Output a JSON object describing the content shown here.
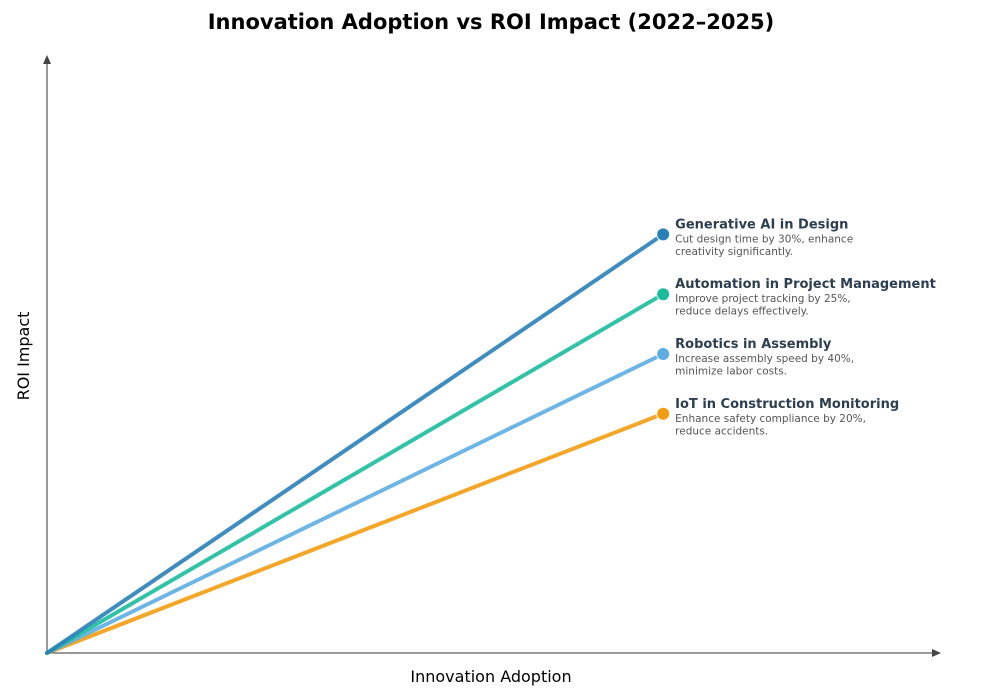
{
  "chart_data": {
    "type": "line",
    "title": "Innovation Adoption vs ROI Impact (2022–2025)",
    "xlabel": "Innovation Adoption",
    "ylabel": "ROI Impact",
    "xlim": [
      0,
      1
    ],
    "ylim": [
      0,
      1
    ],
    "grid": false,
    "axis_ticks": false,
    "series": [
      {
        "name": "Generative AI in Design",
        "description_lines": [
          "Cut design time by 30%, enhance",
          "creativity significantly."
        ],
        "color": "#2980b9",
        "x": [
          0,
          0.69
        ],
        "y": [
          0,
          0.7
        ]
      },
      {
        "name": "Automation in Project Management",
        "description_lines": [
          "Improve project tracking by 25%,",
          "reduce delays effectively."
        ],
        "color": "#1abc9c",
        "x": [
          0,
          0.69
        ],
        "y": [
          0,
          0.6
        ]
      },
      {
        "name": "Robotics in Assembly",
        "description_lines": [
          "Increase assembly speed by 40%,",
          "minimize labor costs."
        ],
        "color": "#5dade2",
        "x": [
          0,
          0.69
        ],
        "y": [
          0,
          0.5
        ]
      },
      {
        "name": "IoT in Construction Monitoring",
        "description_lines": [
          "Enhance safety compliance by 20%,",
          "reduce accidents."
        ],
        "color": "#f39c12",
        "x": [
          0,
          0.69
        ],
        "y": [
          0,
          0.4
        ]
      }
    ]
  }
}
